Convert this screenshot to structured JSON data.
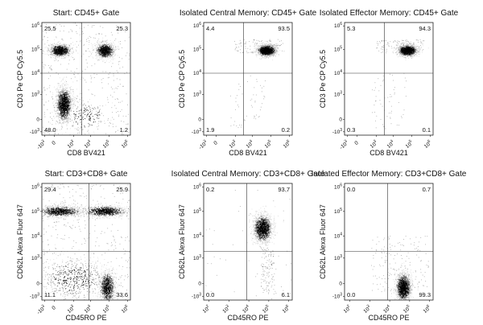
{
  "figure": {
    "description_visible": false
  },
  "chart_data": [
    {
      "type": "scatter",
      "title": "Start: CD45+ Gate",
      "xlabel": "CD8 BV421",
      "ylabel": "CD3 Pe CP Cy5.5",
      "x_scale": "biexponential",
      "y_scale": "biexponential",
      "x_ticks": [
        "-10^3",
        "0",
        "10^3",
        "10^4",
        "10^5",
        "10^6"
      ],
      "y_ticks": [
        "-10^3",
        "0",
        "10^3",
        "10^4",
        "10^5",
        "10^6"
      ],
      "gate": {
        "x": 3000,
        "y": 10000
      },
      "quadrants": {
        "upper_left": "25.5",
        "upper_right": "25.3",
        "lower_left": "48.0",
        "lower_right": "1.2"
      },
      "populations": [
        {
          "x": 300,
          "y": 90000,
          "density": "high"
        },
        {
          "x": 60000,
          "y": 90000,
          "density": "high"
        },
        {
          "x": 500,
          "y": 600,
          "density": "very high"
        },
        {
          "x": 5000,
          "y": 150,
          "density": "low"
        }
      ]
    },
    {
      "type": "scatter",
      "title": "Isolated Central Memory: CD45+ Gate",
      "xlabel": "CD8 BV421",
      "ylabel": "CD3 Pe CP Cy5.5",
      "x_scale": "biexponential",
      "y_scale": "biexponential",
      "x_ticks": [
        "-10^3",
        "0",
        "10^3",
        "10^4",
        "10^5",
        "10^6"
      ],
      "y_ticks": [
        "-10^3",
        "0",
        "10^3",
        "10^4",
        "10^5",
        "10^6"
      ],
      "gate": {
        "x": 3000,
        "y": 10000
      },
      "quadrants": {
        "upper_left": "4.4",
        "upper_right": "93.5",
        "lower_left": "1.9",
        "lower_right": "0.2"
      },
      "populations": [
        {
          "x": 60000,
          "y": 90000,
          "density": "very high"
        }
      ]
    },
    {
      "type": "scatter",
      "title": "Isolated Effector Memory: CD45+ Gate",
      "xlabel": "CD8 BV421",
      "ylabel": "CD3 Pe CP Cy5.5",
      "x_scale": "biexponential",
      "y_scale": "biexponential",
      "x_ticks": [
        "-10^3",
        "0",
        "10^3",
        "10^4",
        "10^5",
        "10^6"
      ],
      "y_ticks": [
        "-10^3",
        "0",
        "10^3",
        "10^4",
        "10^5",
        "10^6"
      ],
      "gate": {
        "x": 3000,
        "y": 10000
      },
      "quadrants": {
        "upper_left": "5.3",
        "upper_right": "94.3",
        "lower_left": "0.3",
        "lower_right": "0.1"
      },
      "populations": [
        {
          "x": 60000,
          "y": 90000,
          "density": "very high"
        }
      ]
    },
    {
      "type": "scatter",
      "title": "Start: CD3+CD8+ Gate",
      "xlabel": "CD45RO PE",
      "ylabel": "CD62L Alexa Fluor 647",
      "x_scale": "biexponential",
      "y_scale": "biexponential",
      "x_ticks": [
        "-10^3",
        "0",
        "10^3",
        "10^4",
        "10^5",
        "10^6"
      ],
      "y_ticks": [
        "-10^3",
        "0",
        "10^3",
        "10^4",
        "10^5",
        "10^6"
      ],
      "gate": {
        "x": 8000,
        "y": 2000
      },
      "quadrants": {
        "upper_left": "29.4",
        "upper_right": "25.9",
        "lower_left": "11.1",
        "lower_right": "33.6"
      },
      "populations": [
        {
          "x": 300,
          "y": 100000,
          "density": "high"
        },
        {
          "x": 60000,
          "y": 100000,
          "density": "high"
        },
        {
          "x": 80000,
          "y": -300,
          "density": "high"
        },
        {
          "x": 1000,
          "y": 200,
          "density": "medium"
        }
      ]
    },
    {
      "type": "scatter",
      "title": "Isolated Central Memory: CD3+CD8+ Gate",
      "xlabel": "CD45RO PE",
      "ylabel": "CD62L Alexa Fluor 647",
      "x_scale": "biexponential",
      "y_scale": "biexponential",
      "x_ticks": [
        "10^2",
        "10^3",
        "10^4",
        "10^5",
        "10^6"
      ],
      "y_ticks": [
        "-10^3",
        "0",
        "10^3",
        "10^4",
        "10^5",
        "10^6"
      ],
      "gate": {
        "x": 8000,
        "y": 2000
      },
      "quadrants": {
        "upper_left": "0.2",
        "upper_right": "93.7",
        "lower_left": "0.0",
        "lower_right": "6.1"
      },
      "populations": [
        {
          "x": 50000,
          "y": 20000,
          "density": "very high"
        }
      ]
    },
    {
      "type": "scatter",
      "title": "Isolated Effector Memory: CD3+CD8+ Gate",
      "xlabel": "CD45RO PE",
      "ylabel": "CD62L Alexa Fluor 647",
      "x_scale": "biexponential",
      "y_scale": "biexponential",
      "x_ticks": [
        "10^2",
        "10^3",
        "10^4",
        "10^5",
        "10^6"
      ],
      "y_ticks": [
        "-10^3",
        "0",
        "10^3",
        "10^4",
        "10^5",
        "10^6"
      ],
      "gate": {
        "x": 8000,
        "y": 2000
      },
      "quadrants": {
        "upper_left": "0.0",
        "upper_right": "0.7",
        "lower_left": "0.0",
        "lower_right": "99.3"
      },
      "populations": [
        {
          "x": 50000,
          "y": -300,
          "density": "very high"
        }
      ]
    }
  ]
}
